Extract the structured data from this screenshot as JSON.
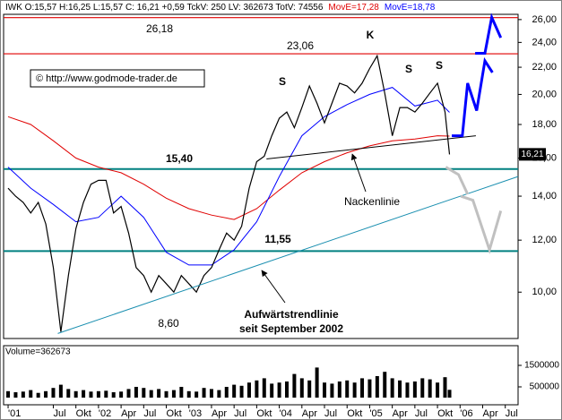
{
  "chart_data": [
    {
      "type": "line",
      "header": "IWK O:15,57 H:16,25 L:15,57 C: 16,21 +0,59 TckV: 250 LV: 362673 TotV: 74556",
      "log_scale": true,
      "xlim": [
        -0.6,
        67.7
      ],
      "ylim": [
        8.5,
        26.4
      ],
      "yticks": [
        {
          "value": 10,
          "label": "10,00"
        },
        {
          "value": 12,
          "label": "12,00"
        },
        {
          "value": 14,
          "label": "14,00"
        },
        {
          "value": 16,
          "label": "16,00"
        },
        {
          "value": 18,
          "label": "18,00"
        },
        {
          "value": 20,
          "label": "20,00"
        },
        {
          "value": 22,
          "label": "22,00"
        },
        {
          "value": 24,
          "label": "24,00"
        },
        {
          "value": 26,
          "label": "26,00"
        }
      ],
      "xticks": [
        {
          "value": 0,
          "label": "'01"
        },
        {
          "value": 6,
          "label": "Jul"
        },
        {
          "value": 9,
          "label": "Okt"
        },
        {
          "value": 12,
          "label": "'02"
        },
        {
          "value": 15,
          "label": "Apr"
        },
        {
          "value": 18,
          "label": "Jul"
        },
        {
          "value": 21,
          "label": "Okt"
        },
        {
          "value": 24,
          "label": "'03"
        },
        {
          "value": 27,
          "label": "Apr"
        },
        {
          "value": 30,
          "label": "Jul"
        },
        {
          "value": 33,
          "label": "Okt"
        },
        {
          "value": 36,
          "label": "'04"
        },
        {
          "value": 39,
          "label": "Apr"
        },
        {
          "value": 42,
          "label": "Jul"
        },
        {
          "value": 45,
          "label": "Okt"
        },
        {
          "value": 48,
          "label": "'05"
        },
        {
          "value": 51,
          "label": "Apr"
        },
        {
          "value": 54,
          "label": "Jul"
        },
        {
          "value": 57,
          "label": "Okt"
        },
        {
          "value": 60,
          "label": "'06"
        },
        {
          "value": 63,
          "label": "Apr"
        },
        {
          "value": 66,
          "label": "Jul"
        }
      ],
      "x": [
        0,
        1,
        2,
        3,
        4,
        5,
        6,
        7,
        8,
        9,
        10,
        11,
        12,
        13,
        14,
        15,
        16,
        17,
        18,
        19,
        20,
        21,
        22,
        23,
        24,
        25,
        26,
        27,
        28,
        29,
        30,
        31,
        32,
        33,
        34,
        35,
        36,
        37,
        38,
        39,
        40,
        41,
        42,
        43,
        44,
        45,
        46,
        47,
        48,
        49,
        50,
        51,
        52,
        53,
        54,
        55,
        56,
        57,
        58,
        58.6
      ],
      "values": [
        14.4,
        14.0,
        13.7,
        13.2,
        13.7,
        12.7,
        10.9,
        8.7,
        10.6,
        12.5,
        13.7,
        14.6,
        14.8,
        14.8,
        13.2,
        13.5,
        12.3,
        10.9,
        10.6,
        10.0,
        10.6,
        10.3,
        10.0,
        10.6,
        10.3,
        10.0,
        10.6,
        10.9,
        11.6,
        12.3,
        12.0,
        12.6,
        14.4,
        15.8,
        16.1,
        17.3,
        18.4,
        18.8,
        17.8,
        19.1,
        20.6,
        19.4,
        18.1,
        19.4,
        20.8,
        20.6,
        20.1,
        20.8,
        21.9,
        22.9,
        20.1,
        17.3,
        19.1,
        19.1,
        18.8,
        19.4,
        20.1,
        20.8,
        18.8,
        16.21
      ],
      "color": "#000000",
      "last_label": "16,21",
      "series": [
        {
          "name": "MovE=17,28",
          "color": "#e00000",
          "x": [
            0,
            3,
            6,
            9,
            12,
            15,
            18,
            21,
            24,
            27,
            30,
            33,
            36,
            39,
            42,
            45,
            48,
            51,
            54,
            57,
            58.6
          ],
          "values": [
            18.5,
            18.0,
            17.0,
            16.0,
            15.5,
            15.2,
            14.6,
            13.9,
            13.4,
            13.1,
            12.9,
            13.4,
            14.3,
            15.2,
            15.8,
            16.3,
            16.7,
            17.0,
            17.1,
            17.3,
            17.28
          ]
        },
        {
          "name": "MovE=18,78",
          "color": "#0000ff",
          "x": [
            0,
            3,
            6,
            9,
            12,
            15,
            18,
            21,
            24,
            27,
            30,
            33,
            36,
            39,
            42,
            45,
            48,
            51,
            54,
            57,
            58.6
          ],
          "values": [
            15.5,
            14.4,
            13.6,
            12.8,
            13.0,
            14.0,
            13.0,
            11.5,
            11.0,
            11.0,
            11.6,
            12.8,
            15.0,
            17.3,
            18.5,
            19.3,
            20.0,
            20.5,
            19.2,
            19.6,
            18.78
          ]
        }
      ],
      "levels": [
        {
          "value": 26.18,
          "label": "26,18",
          "color": "#e00000"
        },
        {
          "value": 23.06,
          "label": "23,06",
          "color": "#e00000"
        },
        {
          "value": 15.4,
          "label": "15,40",
          "color": "#008080"
        },
        {
          "value": 11.55,
          "label": "11,55",
          "color": "#008080"
        }
      ],
      "lines": [
        {
          "color": "#000000",
          "x": [
            34.3,
            62.1
          ],
          "values": [
            15.95,
            17.3
          ]
        },
        {
          "color": "#1a8fb0",
          "x": [
            6.6,
            67.7
          ],
          "values": [
            8.65,
            15.0
          ]
        },
        {
          "color": "#0000ff",
          "x": [
            58.9,
            60.3,
            61.0,
            62.2,
            63.3,
            64.3,
            null,
            62.0,
            63.3,
            64.2,
            65.4
          ],
          "values": [
            17.3,
            17.3,
            20.8,
            18.9,
            22.5,
            21.6,
            null,
            23.1,
            23.1,
            26.2,
            24.4
          ]
        },
        {
          "color": "#c0c0c0",
          "x": [
            58.1,
            59.8,
            61.0,
            null,
            60.1,
            61.7,
            63.9,
            65.4
          ],
          "values": [
            15.5,
            15.1,
            14.1,
            null,
            14.0,
            13.8,
            11.6,
            13.3
          ]
        }
      ],
      "annotations": {
        "low": "8,60",
        "s1": "S",
        "k": "K",
        "s2": "S",
        "s3": "S",
        "neckline": "Nackenlinie",
        "trend1": "Aufwärtstrendlinie",
        "trend2": "seit September 2002",
        "copyright": "© http://www.godmode-trader.de"
      }
    },
    {
      "type": "bar",
      "header": "Volume=362673",
      "xlim": [
        -0.6,
        67.7
      ],
      "ylim": [
        -333333,
        2333333
      ],
      "yticks": [
        500000,
        1500000
      ],
      "x": [
        0,
        1,
        2,
        3,
        4,
        5,
        6,
        7,
        8,
        9,
        10,
        11,
        12,
        13,
        14,
        15,
        16,
        17,
        18,
        19,
        20,
        21,
        22,
        23,
        24,
        25,
        26,
        27,
        28,
        29,
        30,
        31,
        32,
        33,
        34,
        35,
        36,
        37,
        38,
        39,
        40,
        41,
        42,
        43,
        44,
        45,
        46,
        47,
        48,
        49,
        50,
        51,
        52,
        53,
        54,
        55,
        56,
        57,
        58,
        58.6
      ],
      "values": [
        300000,
        250000,
        280000,
        350000,
        220000,
        300000,
        450000,
        600000,
        400000,
        300000,
        350000,
        280000,
        300000,
        320000,
        250000,
        280000,
        400000,
        500000,
        450000,
        350000,
        400000,
        300000,
        350000,
        500000,
        300000,
        280000,
        450000,
        400000,
        350000,
        500000,
        600000,
        550000,
        700000,
        800000,
        900000,
        650000,
        700000,
        750000,
        1100000,
        900000,
        800000,
        1400000,
        700000,
        650000,
        750000,
        800000,
        700000,
        900000,
        850000,
        1000000,
        1200000,
        900000,
        800000,
        700000,
        750000,
        900000,
        850000,
        700000,
        950000,
        362673
      ],
      "color": "#000000"
    }
  ]
}
